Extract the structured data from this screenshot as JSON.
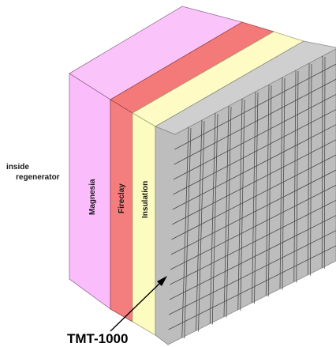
{
  "labels": {
    "side_line1": "inside",
    "side_line2": "regenerator",
    "magnesia": "Magnesia",
    "fireclay": "Fireclay",
    "insulation": "Insulation",
    "sensor": "TMT-1000"
  },
  "colors": {
    "magnesia_front": "#fbbcfb",
    "magnesia_top": "#fac4fa",
    "fireclay_front": "#f47e7e",
    "fireclay_top": "#f47a7a",
    "insulation_front": "#fdfcc0",
    "insulation_top": "#fefcc4",
    "steel_front": "#bdbdbd",
    "steel_top": "#cfcfcf",
    "grid_line": "#4a4a4a",
    "edge": "#7a7a7a"
  }
}
